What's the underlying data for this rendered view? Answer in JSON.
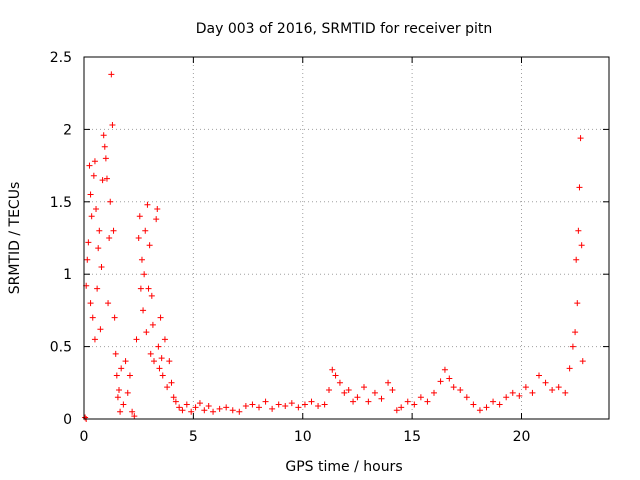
{
  "chart_data": {
    "type": "scatter",
    "title": "Day 003 of 2016, SRMTID for receiver pitn",
    "xlabel": "GPS time / hours",
    "ylabel": "SRMTID / TECUs",
    "xlim": [
      0,
      24
    ],
    "ylim": [
      0,
      2.5
    ],
    "grid": true,
    "marker": "+",
    "color": "#ff0000",
    "x_ticks": [
      {
        "value": 0,
        "label": "0"
      },
      {
        "value": 5,
        "label": "5"
      },
      {
        "value": 10,
        "label": "10"
      },
      {
        "value": 15,
        "label": "15"
      },
      {
        "value": 20,
        "label": "20"
      }
    ],
    "y_ticks": [
      {
        "value": 0,
        "label": "0"
      },
      {
        "value": 0.5,
        "label": "0.5"
      },
      {
        "value": 1,
        "label": "1"
      },
      {
        "value": 1.5,
        "label": "1.5"
      },
      {
        "value": 2,
        "label": "2"
      },
      {
        "value": 2.5,
        "label": "2.5"
      }
    ],
    "series": [
      {
        "name": "SRMTID",
        "points": [
          [
            0.05,
            0.01
          ],
          [
            0.1,
            0.0
          ],
          [
            0.1,
            0.92
          ],
          [
            0.15,
            1.1
          ],
          [
            0.2,
            1.22
          ],
          [
            0.25,
            1.75
          ],
          [
            0.3,
            1.55
          ],
          [
            0.3,
            0.8
          ],
          [
            0.35,
            1.4
          ],
          [
            0.4,
            0.7
          ],
          [
            0.45,
            1.68
          ],
          [
            0.5,
            1.78
          ],
          [
            0.5,
            0.55
          ],
          [
            0.55,
            1.45
          ],
          [
            0.6,
            0.9
          ],
          [
            0.65,
            1.18
          ],
          [
            0.7,
            1.3
          ],
          [
            0.75,
            0.62
          ],
          [
            0.8,
            1.05
          ],
          [
            0.85,
            1.65
          ],
          [
            0.9,
            1.96
          ],
          [
            0.95,
            1.88
          ],
          [
            1.0,
            1.8
          ],
          [
            1.05,
            1.66
          ],
          [
            1.1,
            0.8
          ],
          [
            1.15,
            1.25
          ],
          [
            1.2,
            1.5
          ],
          [
            1.25,
            2.38
          ],
          [
            1.3,
            2.03
          ],
          [
            1.35,
            1.3
          ],
          [
            1.4,
            0.7
          ],
          [
            1.45,
            0.45
          ],
          [
            1.5,
            0.3
          ],
          [
            1.55,
            0.15
          ],
          [
            1.6,
            0.2
          ],
          [
            1.65,
            0.05
          ],
          [
            1.7,
            0.35
          ],
          [
            1.8,
            0.1
          ],
          [
            1.9,
            0.4
          ],
          [
            2.0,
            0.18
          ],
          [
            2.1,
            0.3
          ],
          [
            2.2,
            0.05
          ],
          [
            2.3,
            0.02
          ],
          [
            2.4,
            0.55
          ],
          [
            2.5,
            1.25
          ],
          [
            2.55,
            1.4
          ],
          [
            2.6,
            0.9
          ],
          [
            2.65,
            1.1
          ],
          [
            2.7,
            0.75
          ],
          [
            2.75,
            1.0
          ],
          [
            2.8,
            1.3
          ],
          [
            2.85,
            0.6
          ],
          [
            2.9,
            1.48
          ],
          [
            2.95,
            0.9
          ],
          [
            3.0,
            1.2
          ],
          [
            3.05,
            0.45
          ],
          [
            3.1,
            0.85
          ],
          [
            3.15,
            0.65
          ],
          [
            3.2,
            0.4
          ],
          [
            3.3,
            1.38
          ],
          [
            3.35,
            1.45
          ],
          [
            3.4,
            0.5
          ],
          [
            3.45,
            0.35
          ],
          [
            3.5,
            0.7
          ],
          [
            3.55,
            0.42
          ],
          [
            3.6,
            0.3
          ],
          [
            3.7,
            0.55
          ],
          [
            3.8,
            0.22
          ],
          [
            3.9,
            0.4
          ],
          [
            4.0,
            0.25
          ],
          [
            4.1,
            0.15
          ],
          [
            4.2,
            0.12
          ],
          [
            4.35,
            0.08
          ],
          [
            4.5,
            0.06
          ],
          [
            4.7,
            0.1
          ],
          [
            4.9,
            0.05
          ],
          [
            5.1,
            0.08
          ],
          [
            5.3,
            0.11
          ],
          [
            5.5,
            0.06
          ],
          [
            5.7,
            0.09
          ],
          [
            5.9,
            0.05
          ],
          [
            6.2,
            0.07
          ],
          [
            6.5,
            0.08
          ],
          [
            6.8,
            0.06
          ],
          [
            7.1,
            0.05
          ],
          [
            7.4,
            0.09
          ],
          [
            7.7,
            0.1
          ],
          [
            8.0,
            0.08
          ],
          [
            8.3,
            0.12
          ],
          [
            8.6,
            0.07
          ],
          [
            8.9,
            0.1
          ],
          [
            9.2,
            0.09
          ],
          [
            9.5,
            0.11
          ],
          [
            9.8,
            0.08
          ],
          [
            10.1,
            0.1
          ],
          [
            10.4,
            0.12
          ],
          [
            10.7,
            0.09
          ],
          [
            11.0,
            0.1
          ],
          [
            11.2,
            0.2
          ],
          [
            11.35,
            0.34
          ],
          [
            11.5,
            0.3
          ],
          [
            11.7,
            0.25
          ],
          [
            11.9,
            0.18
          ],
          [
            12.1,
            0.2
          ],
          [
            12.3,
            0.12
          ],
          [
            12.5,
            0.15
          ],
          [
            12.8,
            0.22
          ],
          [
            13.0,
            0.12
          ],
          [
            13.3,
            0.18
          ],
          [
            13.6,
            0.14
          ],
          [
            13.9,
            0.25
          ],
          [
            14.1,
            0.2
          ],
          [
            14.3,
            0.06
          ],
          [
            14.5,
            0.08
          ],
          [
            14.8,
            0.12
          ],
          [
            15.1,
            0.1
          ],
          [
            15.4,
            0.15
          ],
          [
            15.7,
            0.12
          ],
          [
            16.0,
            0.18
          ],
          [
            16.3,
            0.26
          ],
          [
            16.5,
            0.34
          ],
          [
            16.7,
            0.28
          ],
          [
            16.9,
            0.22
          ],
          [
            17.2,
            0.2
          ],
          [
            17.5,
            0.15
          ],
          [
            17.8,
            0.1
          ],
          [
            18.1,
            0.06
          ],
          [
            18.4,
            0.08
          ],
          [
            18.7,
            0.12
          ],
          [
            19.0,
            0.1
          ],
          [
            19.3,
            0.15
          ],
          [
            19.6,
            0.18
          ],
          [
            19.9,
            0.16
          ],
          [
            20.2,
            0.22
          ],
          [
            20.5,
            0.18
          ],
          [
            20.8,
            0.3
          ],
          [
            21.1,
            0.25
          ],
          [
            21.4,
            0.2
          ],
          [
            21.7,
            0.22
          ],
          [
            22.0,
            0.18
          ],
          [
            22.2,
            0.35
          ],
          [
            22.35,
            0.5
          ],
          [
            22.45,
            0.6
          ],
          [
            22.5,
            1.1
          ],
          [
            22.55,
            0.8
          ],
          [
            22.6,
            1.3
          ],
          [
            22.65,
            1.6
          ],
          [
            22.7,
            1.94
          ],
          [
            22.75,
            1.2
          ],
          [
            22.8,
            0.4
          ]
        ]
      }
    ]
  }
}
